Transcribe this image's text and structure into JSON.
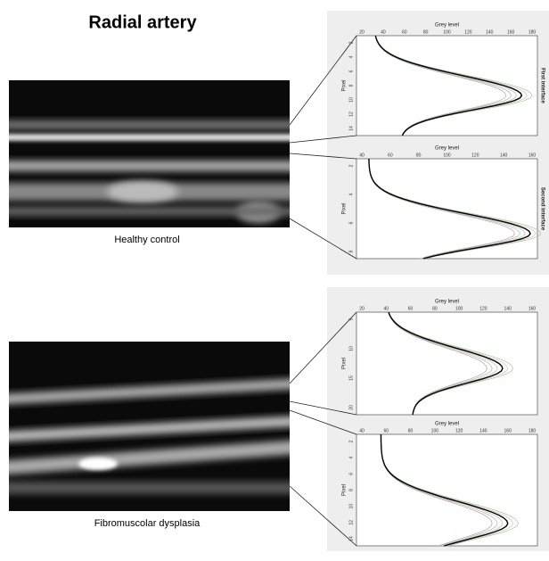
{
  "title": "Radial artery",
  "images": [
    {
      "caption": "Healthy control"
    },
    {
      "caption": "Fibromuscolar dysplasia"
    }
  ],
  "panels": [
    {
      "x_label": "Grey level",
      "y_label": "Pixel",
      "side_label": "First interface",
      "x_ticks": [
        "20",
        "40",
        "60",
        "80",
        "100",
        "120",
        "140",
        "160",
        "180"
      ],
      "y_ticks": [
        "2",
        "4",
        "6",
        "8",
        "10",
        "12",
        "14"
      ]
    },
    {
      "x_label": "Grey level",
      "y_label": "Pixel",
      "side_label": "Second interface",
      "x_ticks": [
        "40",
        "60",
        "80",
        "100",
        "120",
        "140",
        "160"
      ],
      "y_ticks": [
        "2",
        "4",
        "6",
        "8"
      ]
    },
    {
      "x_label": "Grey level",
      "y_label": "Pixel",
      "x_ticks": [
        "20",
        "40",
        "60",
        "80",
        "100",
        "120",
        "140",
        "160"
      ],
      "y_ticks": [
        "5",
        "10",
        "15",
        "20"
      ]
    },
    {
      "x_label": "Grey level",
      "y_label": "Pixel",
      "x_ticks": [
        "40",
        "60",
        "80",
        "100",
        "120",
        "140",
        "160",
        "180"
      ],
      "y_ticks": [
        "2",
        "4",
        "6",
        "8",
        "10",
        "12",
        "14"
      ]
    }
  ]
}
